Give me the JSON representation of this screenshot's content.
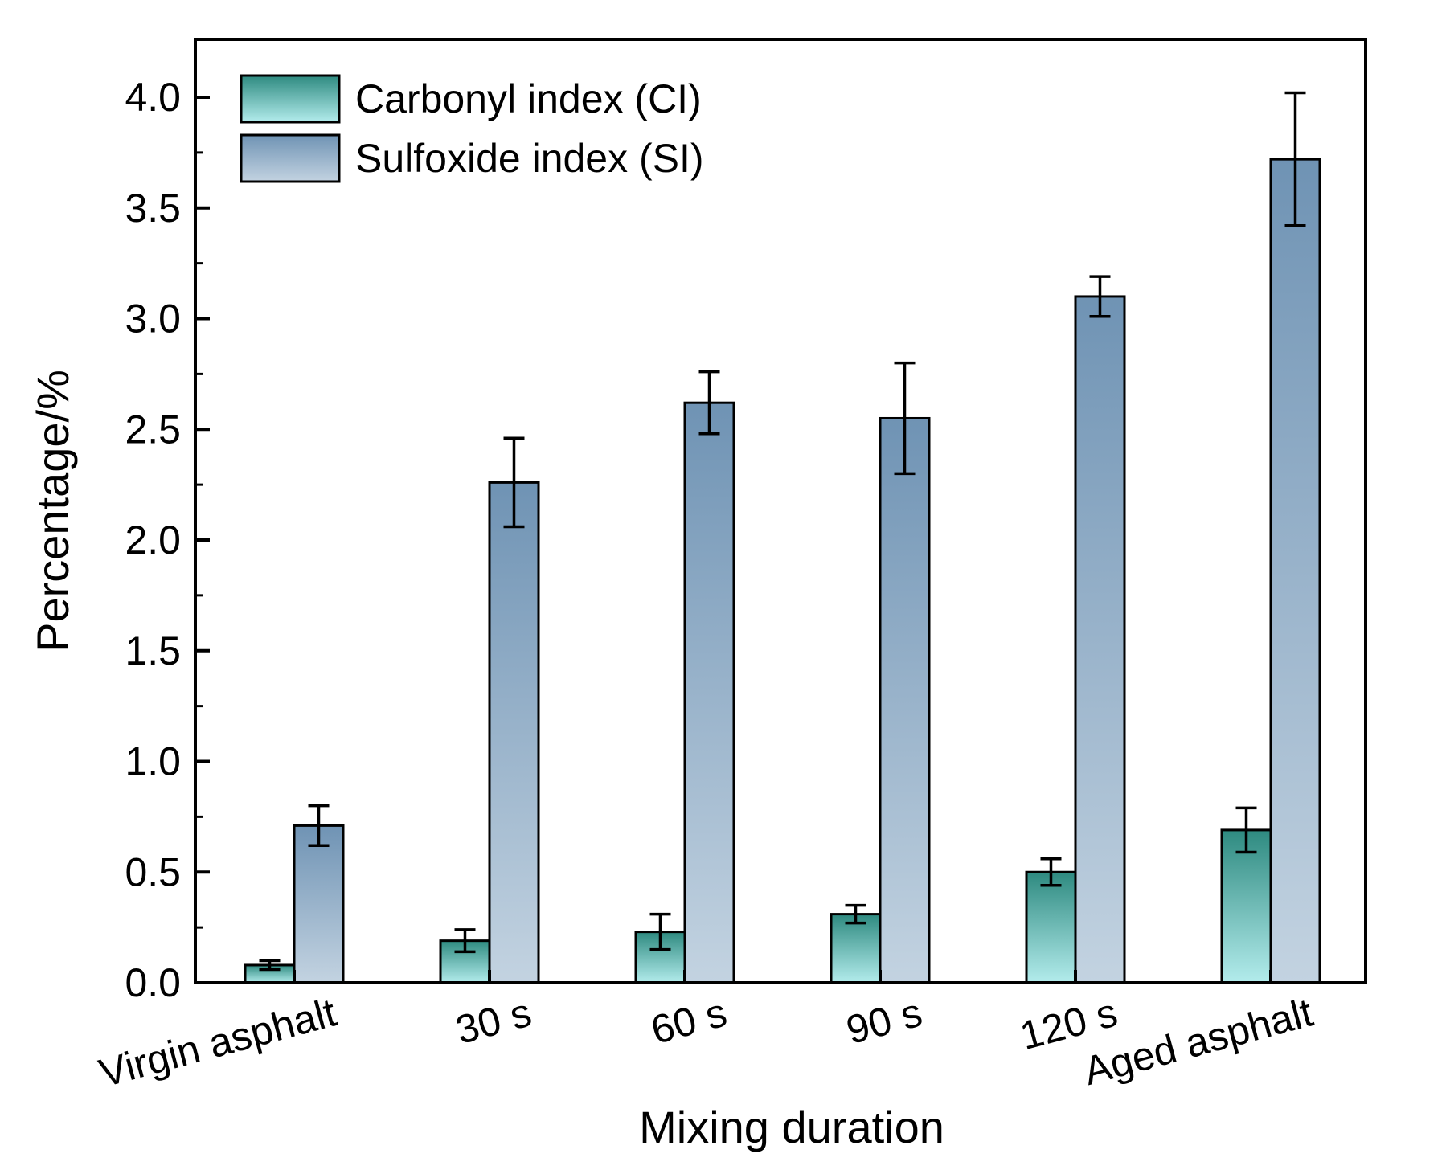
{
  "chart_data": {
    "type": "bar",
    "title": "",
    "xlabel": "Mixing duration",
    "ylabel": "Percentage/%",
    "ylim": [
      0,
      4.25
    ],
    "yticks": [
      "0.0",
      "0.5",
      "1.0",
      "1.5",
      "2.0",
      "2.5",
      "3.0",
      "3.5",
      "4.0"
    ],
    "grid": false,
    "legend_position": "top-left",
    "categories": [
      "Virgin asphalt",
      "30 s",
      "60 s",
      "90 s",
      "120 s",
      "Aged asphalt"
    ],
    "series": [
      {
        "name": "Carbonyl index (CI)",
        "values": [
          0.08,
          0.19,
          0.23,
          0.31,
          0.5,
          0.69
        ],
        "errors": [
          0.02,
          0.05,
          0.08,
          0.04,
          0.06,
          0.1
        ],
        "color_top": "#2e8a80",
        "color_bottom": "#b3ecec"
      },
      {
        "name": "Sulfoxide index (SI)",
        "values": [
          0.71,
          2.26,
          2.62,
          2.55,
          3.1,
          3.72
        ],
        "errors": [
          0.09,
          0.2,
          0.14,
          0.25,
          0.09,
          0.3
        ],
        "color_top": "#6f93b4",
        "color_bottom": "#c3d3e1"
      }
    ]
  }
}
